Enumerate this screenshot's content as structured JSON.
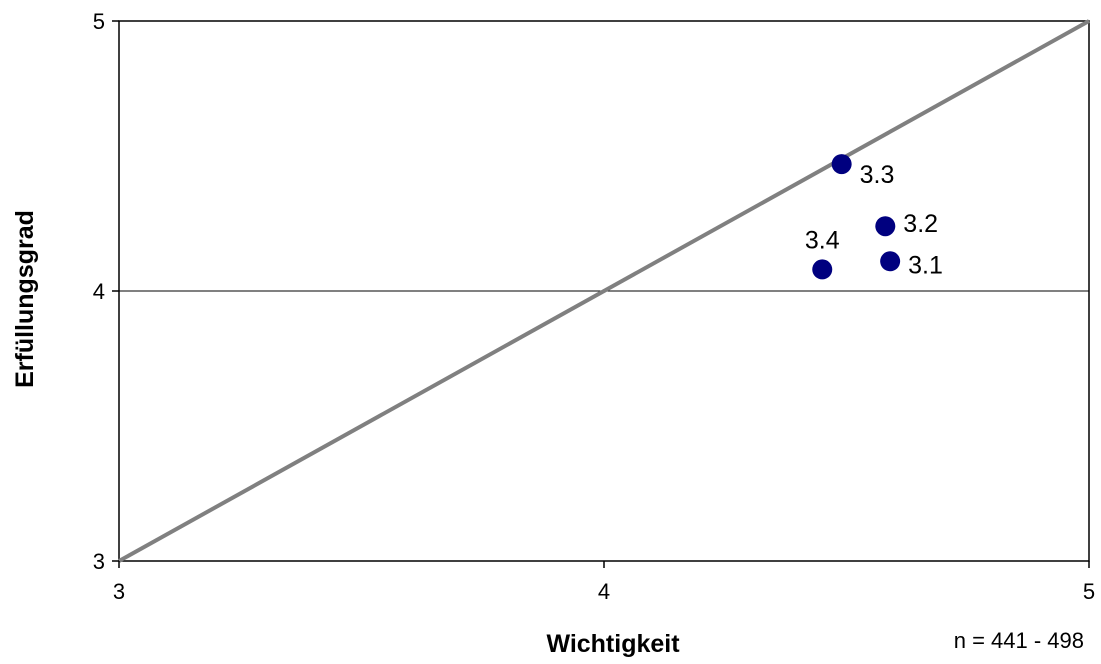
{
  "chart_data": {
    "type": "scatter",
    "xlabel": "Wichtigkeit",
    "ylabel": "Erfüllungsgrad",
    "xlim": [
      3,
      5
    ],
    "ylim": [
      3,
      5
    ],
    "x_ticks": [
      "3",
      "4",
      "5"
    ],
    "y_ticks": [
      "3",
      "4",
      "5"
    ],
    "reference_line": {
      "from": [
        3,
        3
      ],
      "to": [
        5,
        5
      ],
      "color": "#808080"
    },
    "horizontal_gridline": 4,
    "point_color": "#00007f",
    "points": [
      {
        "label": "3.1",
        "x": 4.59,
        "y": 4.11
      },
      {
        "label": "3.2",
        "x": 4.58,
        "y": 4.24
      },
      {
        "label": "3.3",
        "x": 4.49,
        "y": 4.47
      },
      {
        "label": "3.4",
        "x": 4.45,
        "y": 4.08
      }
    ],
    "note": "n = 441 - 498"
  }
}
